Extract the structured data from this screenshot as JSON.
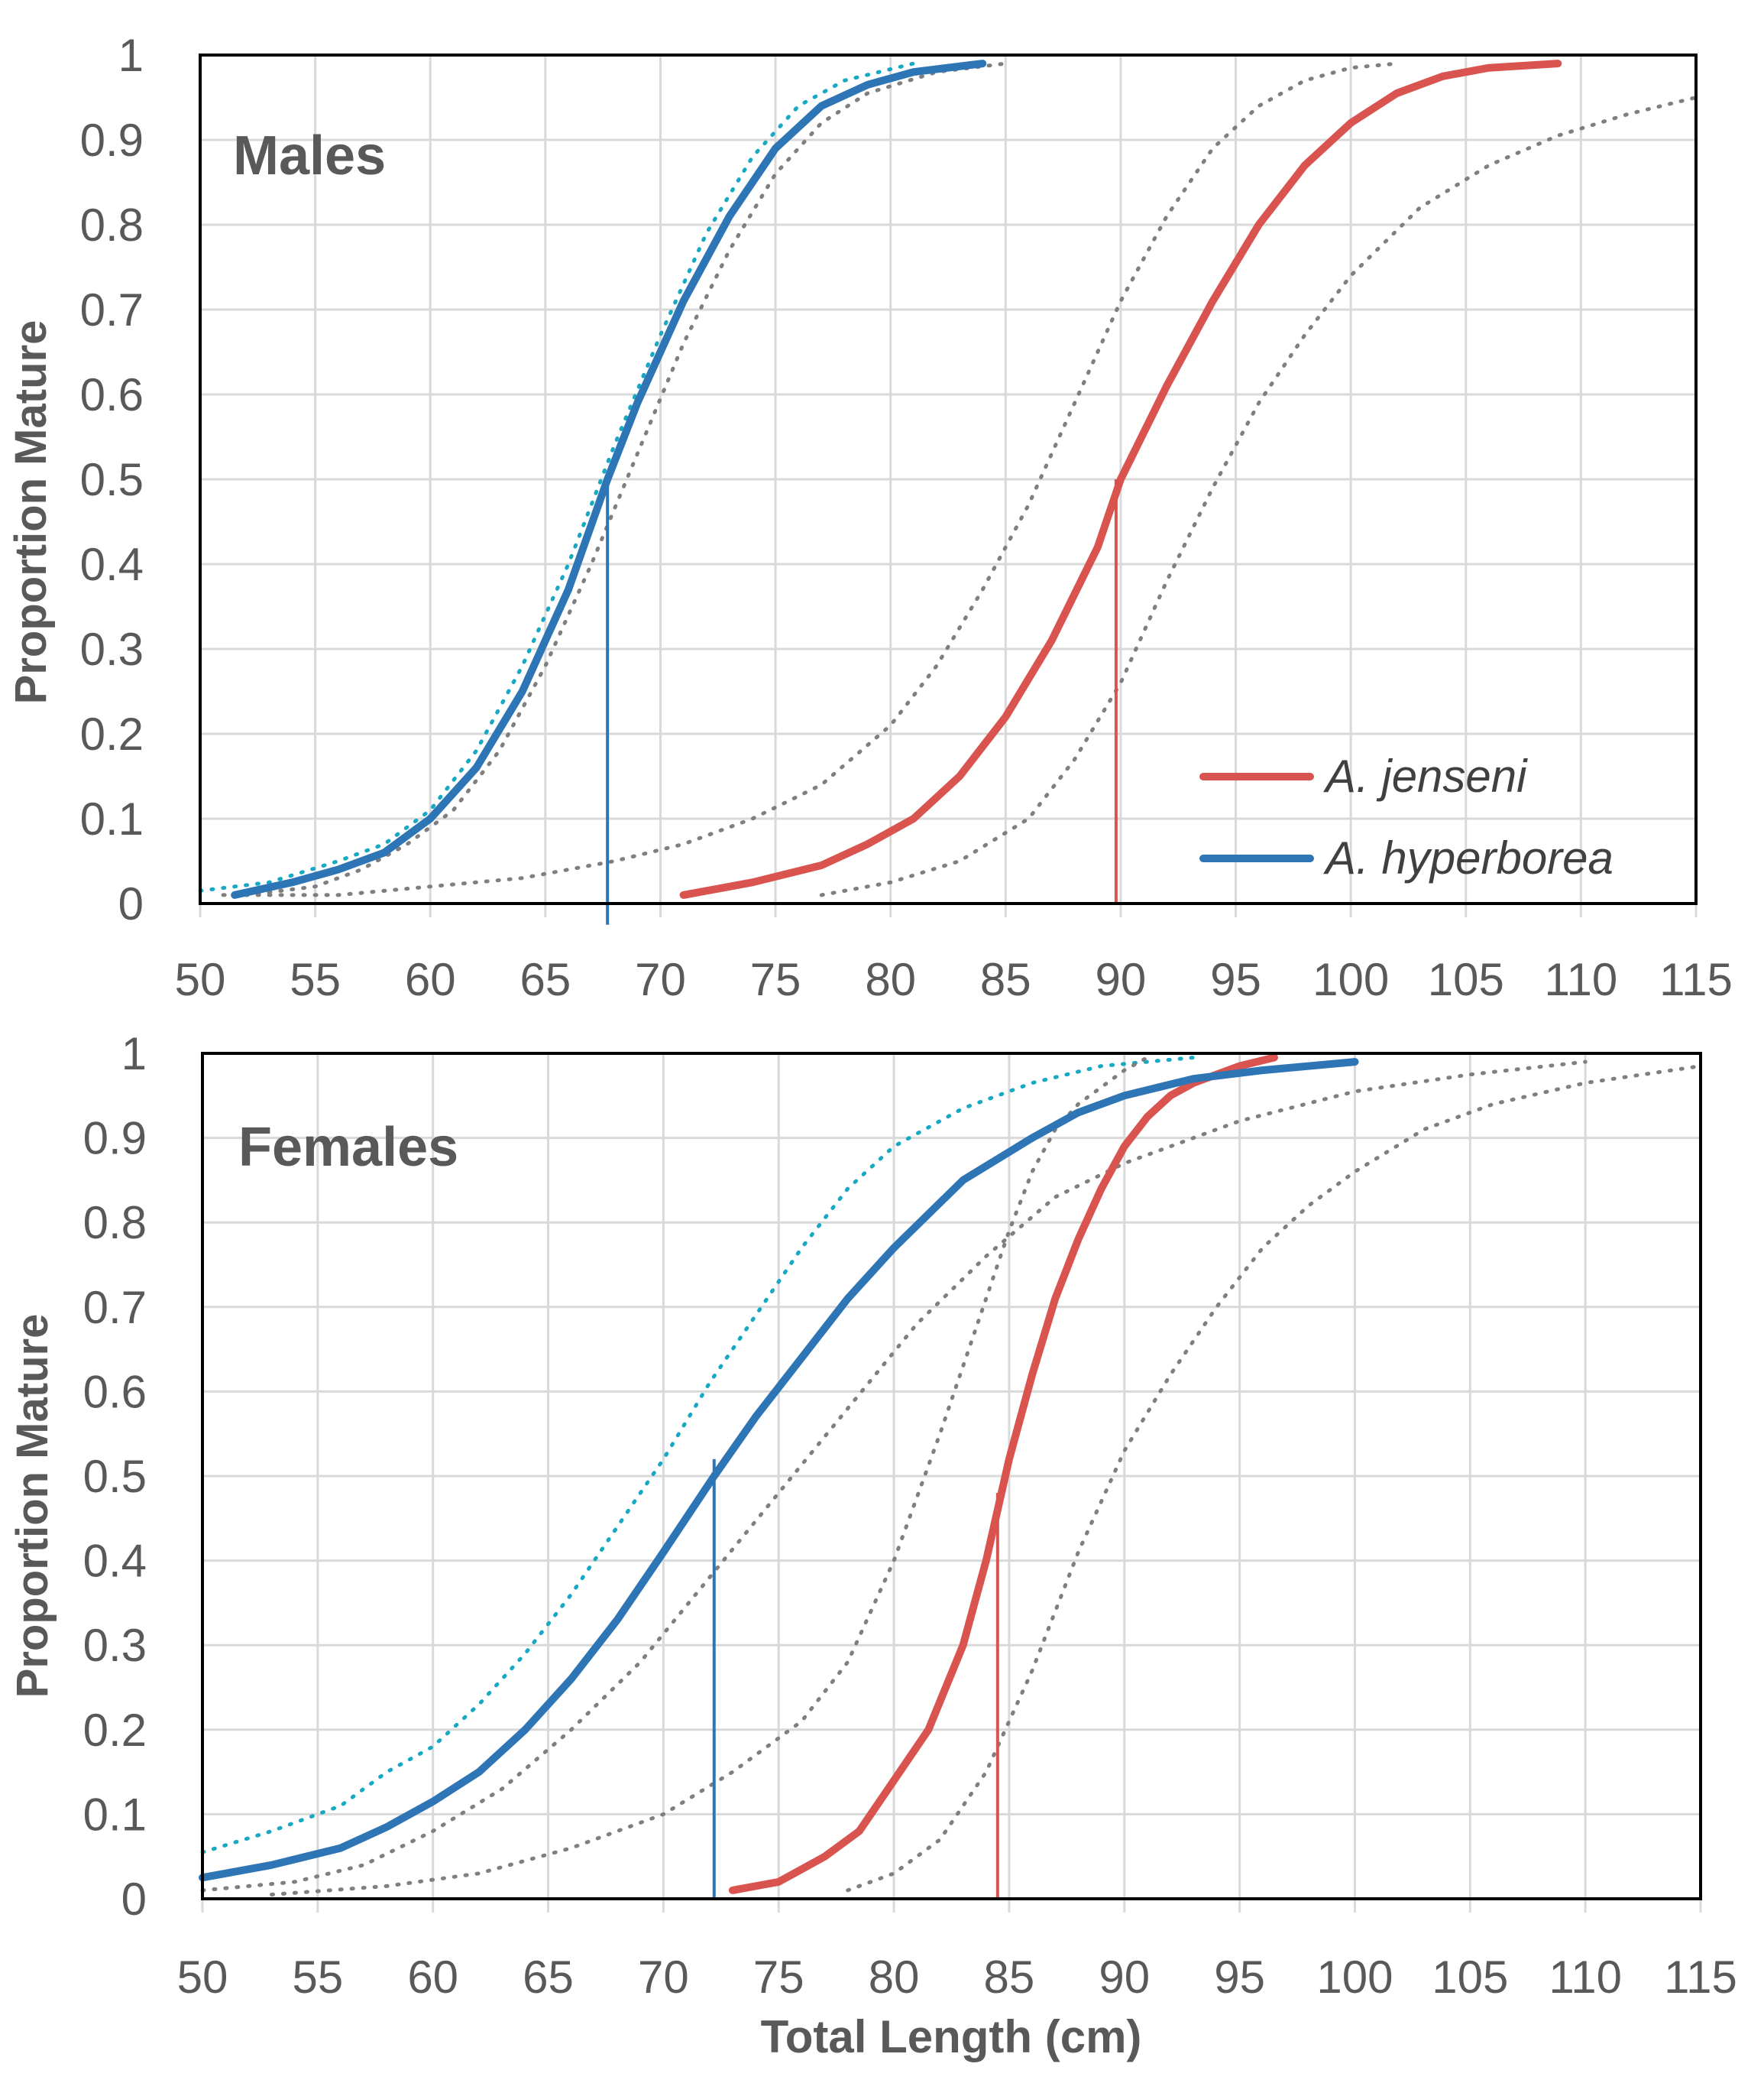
{
  "colors": {
    "jenseni": "#d9534f",
    "hyperborea": "#2e75b6",
    "ci_hyperborea": "#17a9c4",
    "ci_grey": "#7f7f7f",
    "grid": "#d9d9d9",
    "text": "#595959"
  },
  "legend": {
    "jenseni": "A. jenseni",
    "hyperborea": "A. hyperborea"
  },
  "chart_data": [
    {
      "type": "line",
      "title": "Males",
      "xlabel": "",
      "ylabel": "Proportion  Mature",
      "xlim": [
        50,
        115
      ],
      "ylim": [
        0,
        1
      ],
      "xticks": [
        "50",
        "55",
        "60",
        "65",
        "70",
        "75",
        "80",
        "85",
        "90",
        "95",
        "100",
        "105",
        "110",
        "115"
      ],
      "yticks": [
        "0",
        "0.1",
        "0.2",
        "0.3",
        "0.4",
        "0.5",
        "0.6",
        "0.7",
        "0.8",
        "0.9",
        "1"
      ],
      "grid": true,
      "legend_position": "bottom-right",
      "series": [
        {
          "name": "A. jenseni",
          "key": "jenseni",
          "style": "solid",
          "x": [
            71,
            74,
            77,
            79,
            81,
            83,
            85,
            87,
            89,
            90,
            92,
            94,
            96,
            98,
            100,
            102,
            104,
            106,
            109
          ],
          "y": [
            0.01,
            0.025,
            0.045,
            0.07,
            0.1,
            0.15,
            0.22,
            0.31,
            0.42,
            0.5,
            0.61,
            0.71,
            0.8,
            0.87,
            0.92,
            0.955,
            0.975,
            0.985,
            0.99
          ]
        },
        {
          "name": "A. hyperborea",
          "key": "hyperborea",
          "style": "solid",
          "x": [
            51.5,
            54,
            56,
            58,
            60,
            62,
            64,
            66,
            67.7,
            69,
            71,
            73,
            75,
            77,
            79,
            81,
            84
          ],
          "y": [
            0.01,
            0.025,
            0.04,
            0.06,
            0.1,
            0.16,
            0.25,
            0.37,
            0.5,
            0.59,
            0.71,
            0.81,
            0.89,
            0.94,
            0.965,
            0.98,
            0.99
          ]
        },
        {
          "key": "ci_hyperborea",
          "style": "dotted",
          "x": [
            50,
            53,
            56,
            58,
            60,
            62,
            64,
            66,
            68,
            70,
            72,
            74,
            76,
            78,
            81
          ],
          "y": [
            0.015,
            0.025,
            0.05,
            0.07,
            0.11,
            0.18,
            0.28,
            0.4,
            0.54,
            0.67,
            0.79,
            0.88,
            0.94,
            0.97,
            0.99
          ]
        },
        {
          "key": "ci_grey_a",
          "style": "dotted",
          "x": [
            52,
            55,
            57,
            59,
            61,
            63,
            65,
            67,
            69,
            71,
            73,
            75,
            77,
            79,
            82,
            85
          ],
          "y": [
            0.01,
            0.02,
            0.04,
            0.07,
            0.11,
            0.18,
            0.28,
            0.4,
            0.53,
            0.66,
            0.77,
            0.86,
            0.92,
            0.955,
            0.98,
            0.99
          ]
        },
        {
          "key": "ci_grey_b",
          "style": "dotted",
          "x": [
            51,
            56,
            60,
            64,
            68,
            71,
            74,
            77,
            80,
            82,
            84,
            86,
            88,
            90,
            92,
            94,
            96,
            98,
            100,
            102
          ],
          "y": [
            0.01,
            0.01,
            0.02,
            0.03,
            0.05,
            0.07,
            0.1,
            0.14,
            0.21,
            0.28,
            0.37,
            0.47,
            0.59,
            0.71,
            0.81,
            0.89,
            0.94,
            0.97,
            0.985,
            0.99
          ]
        },
        {
          "key": "ci_grey_c",
          "style": "dotted",
          "x": [
            77,
            80,
            83,
            86,
            88,
            90,
            92,
            94,
            96,
            98,
            100,
            103,
            106,
            109,
            112,
            115
          ],
          "y": [
            0.01,
            0.025,
            0.05,
            0.1,
            0.17,
            0.26,
            0.38,
            0.49,
            0.59,
            0.67,
            0.74,
            0.82,
            0.87,
            0.905,
            0.93,
            0.95
          ]
        }
      ],
      "markers": [
        {
          "key": "hyperborea",
          "x": 67.7,
          "y": 0.5,
          "to_y": -0.025
        },
        {
          "key": "jenseni",
          "x": 89.8,
          "y": 0.5,
          "to_y": 0.0
        }
      ]
    },
    {
      "type": "line",
      "title": "Females",
      "xlabel": "Total Length (cm)",
      "ylabel": "Proportion  Mature",
      "xlim": [
        50,
        115
      ],
      "ylim": [
        0,
        1
      ],
      "xticks": [
        "50",
        "55",
        "60",
        "65",
        "70",
        "75",
        "80",
        "85",
        "90",
        "95",
        "100",
        "105",
        "110",
        "115"
      ],
      "yticks": [
        "0",
        "0.1",
        "0.2",
        "0.3",
        "0.4",
        "0.5",
        "0.6",
        "0.7",
        "0.8",
        "0.9",
        "1"
      ],
      "grid": true,
      "series": [
        {
          "name": "A. jenseni",
          "key": "jenseni",
          "style": "solid",
          "x": [
            73,
            75,
            77,
            78.5,
            80,
            81.5,
            83,
            84,
            85,
            86,
            87,
            88,
            89,
            90,
            91,
            92,
            93,
            94,
            95,
            96.5
          ],
          "y": [
            0.01,
            0.02,
            0.05,
            0.08,
            0.14,
            0.2,
            0.3,
            0.4,
            0.52,
            0.62,
            0.71,
            0.78,
            0.84,
            0.89,
            0.925,
            0.95,
            0.965,
            0.975,
            0.985,
            0.995
          ]
        },
        {
          "name": "A. hyperborea",
          "key": "hyperborea",
          "style": "solid",
          "x": [
            50,
            53,
            56,
            58,
            60,
            62,
            64,
            66,
            68,
            70,
            72.2,
            74,
            76,
            78,
            80,
            83,
            86,
            88,
            90,
            93,
            96,
            100
          ],
          "y": [
            0.025,
            0.04,
            0.06,
            0.085,
            0.115,
            0.15,
            0.2,
            0.26,
            0.33,
            0.41,
            0.5,
            0.57,
            0.64,
            0.71,
            0.77,
            0.85,
            0.9,
            0.93,
            0.95,
            0.97,
            0.98,
            0.99
          ]
        },
        {
          "key": "ci_hyperborea",
          "style": "dotted",
          "x": [
            50,
            53,
            56,
            58,
            60,
            62,
            64,
            66,
            68,
            70,
            72,
            74,
            76,
            78,
            80,
            83,
            86,
            89,
            93
          ],
          "y": [
            0.055,
            0.08,
            0.11,
            0.15,
            0.18,
            0.23,
            0.29,
            0.36,
            0.44,
            0.52,
            0.61,
            0.69,
            0.77,
            0.84,
            0.89,
            0.935,
            0.965,
            0.985,
            0.995
          ]
        },
        {
          "key": "ci_grey_a",
          "style": "dotted",
          "x": [
            50,
            54,
            57,
            60,
            63,
            66,
            69,
            72,
            75,
            78,
            81,
            84,
            87,
            90,
            95,
            100,
            105,
            110
          ],
          "y": [
            0.01,
            0.02,
            0.04,
            0.08,
            0.13,
            0.2,
            0.28,
            0.38,
            0.48,
            0.58,
            0.68,
            0.76,
            0.83,
            0.87,
            0.92,
            0.955,
            0.975,
            0.99
          ]
        },
        {
          "key": "ci_grey_b",
          "style": "dotted",
          "x": [
            53,
            58,
            62,
            66,
            70,
            73,
            76,
            78,
            80,
            82,
            84,
            85,
            86,
            87,
            88,
            90,
            91
          ],
          "y": [
            0.005,
            0.015,
            0.03,
            0.06,
            0.1,
            0.15,
            0.21,
            0.28,
            0.4,
            0.55,
            0.71,
            0.79,
            0.86,
            0.91,
            0.94,
            0.98,
            0.995
          ]
        },
        {
          "key": "ci_grey_c",
          "style": "dotted",
          "x": [
            78,
            80,
            82,
            84,
            86,
            88,
            90,
            92,
            94,
            96,
            98,
            100,
            103,
            106,
            110,
            115
          ],
          "y": [
            0.01,
            0.03,
            0.07,
            0.15,
            0.27,
            0.41,
            0.53,
            0.62,
            0.7,
            0.77,
            0.82,
            0.86,
            0.91,
            0.94,
            0.965,
            0.985
          ]
        }
      ],
      "markers": [
        {
          "key": "hyperborea",
          "x": 72.2,
          "y": 0.52,
          "to_y": 0.0
        },
        {
          "key": "jenseni",
          "x": 84.5,
          "y": 0.48,
          "to_y": 0.0
        }
      ]
    }
  ]
}
